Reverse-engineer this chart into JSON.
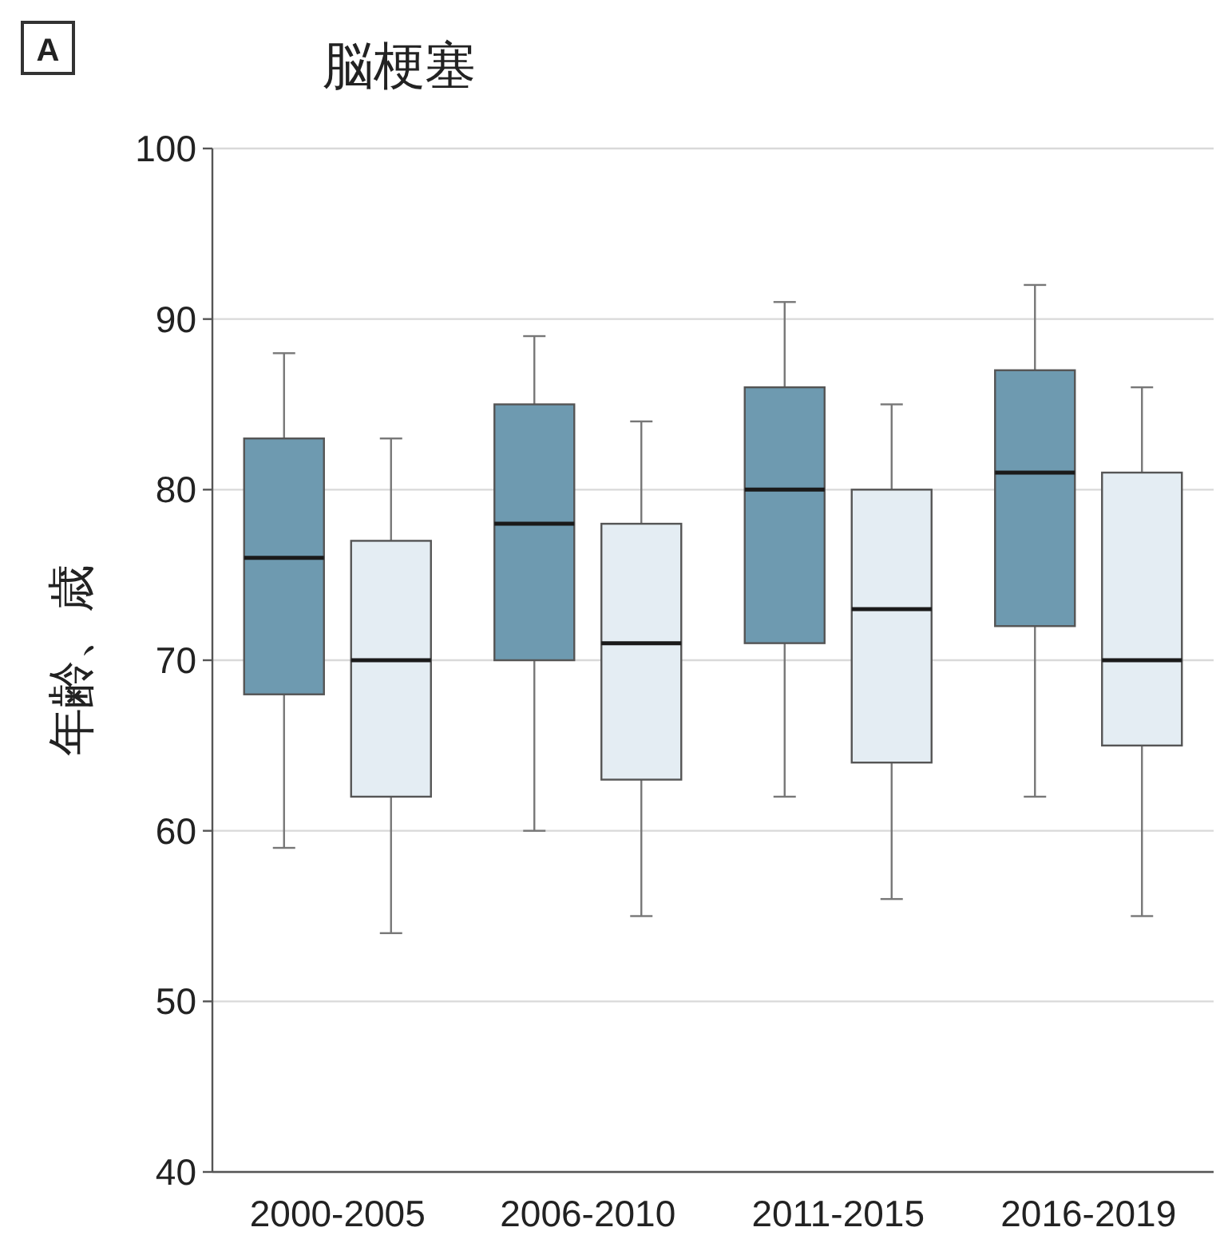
{
  "chart_data": {
    "type": "box",
    "title": "脳梗塞",
    "ylabel": "年齢、歳",
    "annotations": [
      "A"
    ],
    "categories": [
      "2000-2005",
      "2006-2010",
      "2011-2015",
      "2016-2019"
    ],
    "series": [
      {
        "color": "#6e9ab0",
        "boxes": [
          {
            "low": 59,
            "q1": 68,
            "median": 76,
            "q3": 83,
            "high": 88
          },
          {
            "low": 60,
            "q1": 70,
            "median": 78,
            "q3": 85,
            "high": 89
          },
          {
            "low": 62,
            "q1": 71,
            "median": 80,
            "q3": 86,
            "high": 91
          },
          {
            "low": 62,
            "q1": 72,
            "median": 81,
            "q3": 87,
            "high": 92
          }
        ]
      },
      {
        "color": "#e4edf3",
        "boxes": [
          {
            "low": 54,
            "q1": 62,
            "median": 70,
            "q3": 77,
            "high": 83
          },
          {
            "low": 55,
            "q1": 63,
            "median": 71,
            "q3": 78,
            "high": 84
          },
          {
            "low": 56,
            "q1": 64,
            "median": 73,
            "q3": 80,
            "high": 85
          },
          {
            "low": 55,
            "q1": 65,
            "median": 70,
            "q3": 81,
            "high": 86
          }
        ]
      }
    ],
    "ylim": [
      40,
      100
    ],
    "yticks": [
      40,
      50,
      60,
      70,
      80,
      90,
      100
    ],
    "grid": "y"
  }
}
